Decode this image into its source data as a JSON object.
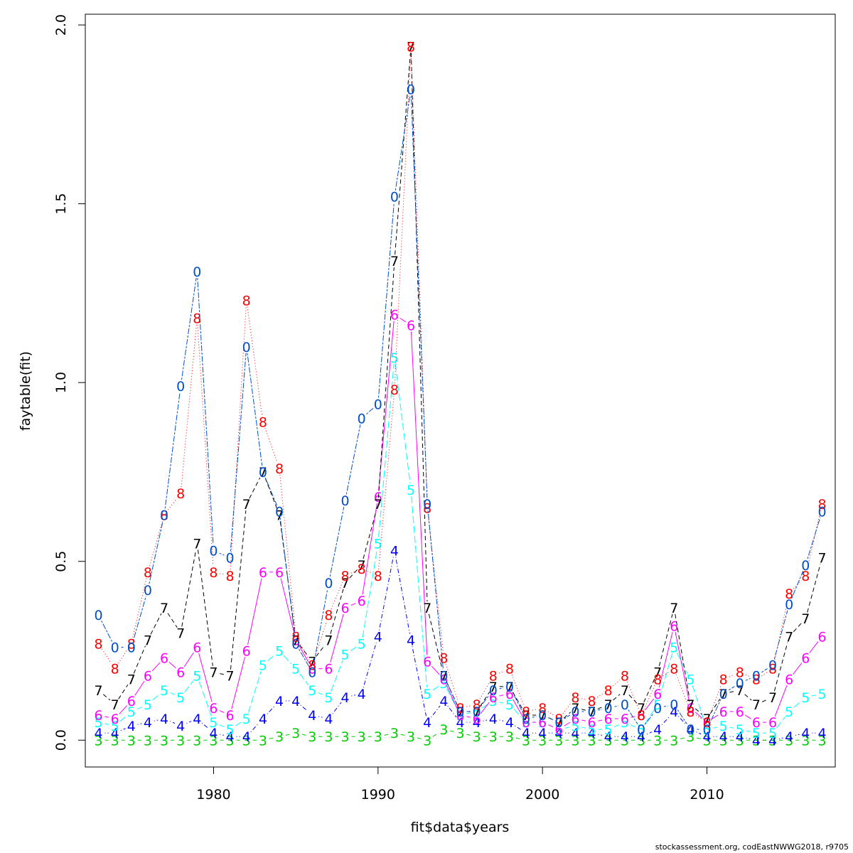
{
  "footer": "stockassessment.org, codEastNWWG2018, r9705",
  "chart_data": {
    "type": "line",
    "xlabel": "fit$data$years",
    "ylabel": "faytable(fit)",
    "xlim": [
      1972.2,
      2017.8
    ],
    "ylim": [
      -0.075,
      2.03
    ],
    "x_ticks": [
      1980,
      1990,
      2000,
      2010
    ],
    "y_ticks": [
      0.0,
      0.5,
      1.0,
      1.5,
      2.0
    ],
    "x_tick_labels": [
      "1980",
      "1990",
      "2000",
      "2010"
    ],
    "y_tick_labels": [
      "0.0",
      "0.5",
      "1.0",
      "1.5",
      "2.0"
    ],
    "grid": false,
    "x": [
      1973,
      1974,
      1975,
      1976,
      1977,
      1978,
      1979,
      1980,
      1981,
      1982,
      1983,
      1984,
      1985,
      1986,
      1987,
      1988,
      1989,
      1990,
      1991,
      1992,
      1993,
      1994,
      1995,
      1996,
      1997,
      1998,
      1999,
      2000,
      2001,
      2002,
      2003,
      2004,
      2005,
      2006,
      2007,
      2008,
      2009,
      2010,
      2011,
      2012,
      2013,
      2014,
      2015,
      2016,
      2017
    ],
    "series": [
      {
        "symbol": "3",
        "color": "#00cd00",
        "line": "dash",
        "values": [
          0.0,
          0.0,
          0.0,
          0.0,
          0.0,
          0.0,
          0.0,
          0.0,
          0.0,
          0.0,
          0.0,
          0.01,
          0.02,
          0.01,
          0.01,
          0.01,
          0.01,
          0.01,
          0.02,
          0.01,
          0.0,
          0.03,
          0.02,
          0.01,
          0.01,
          0.01,
          0.0,
          0.0,
          0.0,
          0.0,
          0.0,
          0.0,
          0.0,
          0.0,
          0.0,
          0.0,
          0.01,
          0.0,
          0.0,
          0.0,
          0.0,
          0.0,
          0.0,
          0.0,
          0.0
        ]
      },
      {
        "symbol": "4",
        "color": "#0000ff",
        "line": "dashdot",
        "values": [
          0.02,
          0.02,
          0.04,
          0.05,
          0.06,
          0.04,
          0.06,
          0.02,
          0.01,
          0.01,
          0.06,
          0.11,
          0.11,
          0.07,
          0.06,
          0.12,
          0.13,
          0.29,
          0.53,
          0.28,
          0.05,
          0.11,
          0.05,
          0.05,
          0.06,
          0.05,
          0.02,
          0.02,
          0.02,
          0.02,
          0.02,
          0.01,
          0.01,
          0.01,
          0.03,
          0.08,
          0.03,
          0.01,
          0.01,
          0.01,
          0.0,
          0.0,
          0.01,
          0.02,
          0.02
        ]
      },
      {
        "symbol": "5",
        "color": "#00ffff",
        "line": "longdash",
        "values": [
          0.05,
          0.04,
          0.08,
          0.1,
          0.14,
          0.12,
          0.18,
          0.05,
          0.03,
          0.06,
          0.21,
          0.25,
          0.2,
          0.14,
          0.12,
          0.24,
          0.27,
          0.55,
          1.07,
          0.7,
          0.13,
          0.16,
          0.07,
          0.08,
          0.11,
          0.1,
          0.05,
          0.05,
          0.03,
          0.04,
          0.03,
          0.03,
          0.05,
          0.03,
          0.1,
          0.26,
          0.17,
          0.03,
          0.04,
          0.03,
          0.02,
          0.02,
          0.08,
          0.12,
          0.13
        ]
      },
      {
        "symbol": "6",
        "color": "#ff00ff",
        "line": "solid",
        "values": [
          0.07,
          0.06,
          0.11,
          0.18,
          0.23,
          0.19,
          0.26,
          0.09,
          0.07,
          0.25,
          0.47,
          0.47,
          0.28,
          0.2,
          0.2,
          0.37,
          0.39,
          0.68,
          1.19,
          1.16,
          0.22,
          0.17,
          0.07,
          0.06,
          0.12,
          0.13,
          0.05,
          0.05,
          0.03,
          0.06,
          0.05,
          0.06,
          0.06,
          0.07,
          0.13,
          0.32,
          0.09,
          0.05,
          0.08,
          0.08,
          0.05,
          0.05,
          0.17,
          0.23,
          0.29
        ]
      },
      {
        "symbol": "7",
        "color": "#000000",
        "line": "dash",
        "values": [
          0.14,
          0.1,
          0.17,
          0.28,
          0.37,
          0.3,
          0.55,
          0.19,
          0.18,
          0.66,
          0.75,
          0.63,
          0.28,
          0.22,
          0.28,
          0.44,
          0.49,
          0.66,
          1.34,
          1.94,
          0.37,
          0.18,
          0.08,
          0.08,
          0.15,
          0.15,
          0.07,
          0.07,
          0.05,
          0.09,
          0.08,
          0.1,
          0.14,
          0.09,
          0.19,
          0.37,
          0.1,
          0.06,
          0.13,
          0.14,
          0.1,
          0.12,
          0.29,
          0.34,
          0.51
        ]
      },
      {
        "symbol": "8",
        "color": "#ff0000",
        "line": "dot",
        "values": [
          0.27,
          0.2,
          0.27,
          0.47,
          0.63,
          0.69,
          1.18,
          0.47,
          0.46,
          1.23,
          0.89,
          0.76,
          0.29,
          0.21,
          0.35,
          0.46,
          0.48,
          0.46,
          0.98,
          1.94,
          0.65,
          0.23,
          0.09,
          0.1,
          0.18,
          0.2,
          0.08,
          0.09,
          0.06,
          0.12,
          0.11,
          0.14,
          0.18,
          0.07,
          0.17,
          0.2,
          0.08,
          0.05,
          0.17,
          0.19,
          0.17,
          0.2,
          0.41,
          0.46,
          0.66
        ]
      },
      {
        "symbol": "0",
        "color": "#0050cc",
        "line": "twodash",
        "values": [
          0.35,
          0.26,
          0.26,
          0.42,
          0.63,
          0.99,
          1.31,
          0.53,
          0.51,
          1.1,
          0.75,
          0.64,
          0.27,
          0.19,
          0.44,
          0.67,
          0.9,
          0.94,
          1.52,
          1.82,
          0.66,
          0.18,
          0.08,
          0.08,
          0.14,
          0.15,
          0.06,
          0.07,
          0.05,
          0.08,
          0.08,
          0.09,
          0.1,
          0.03,
          0.09,
          0.1,
          0.03,
          0.03,
          0.13,
          0.16,
          0.18,
          0.21,
          0.38,
          0.49,
          0.64
        ]
      }
    ]
  }
}
